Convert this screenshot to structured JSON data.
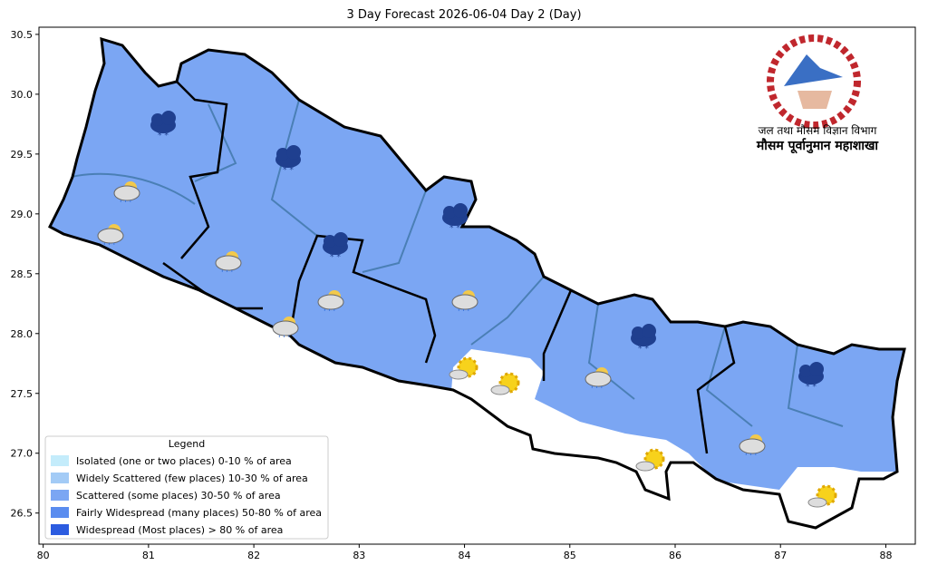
{
  "chart_data": {
    "type": "map",
    "title": "3 Day Forecast 2026-06-04 Day 2 (Day)",
    "xlim": [
      79.96,
      88.28
    ],
    "ylim": [
      26.24,
      30.56
    ],
    "xticks": [
      80,
      81,
      82,
      83,
      84,
      85,
      86,
      87,
      88
    ],
    "yticks": [
      26.5,
      {
        "value": 27,
        "label": "27.0"
      },
      27.5,
      {
        "value": 28,
        "label": "28.0"
      },
      28.5,
      {
        "value": 29,
        "label": "29.0"
      },
      29.5,
      {
        "value": 30,
        "label": "30.0"
      },
      30.5
    ],
    "legend": {
      "title": "Legend",
      "position": "lower left",
      "entries": [
        {
          "name": "Isolated (one or two places)  0-10 % of area",
          "color": "#c4ecfb"
        },
        {
          "name": "Widely Scattered (few places)  10-30 % of area",
          "color": "#a3cbf6"
        },
        {
          "name": "Scattered (some places)  30-50 % of area",
          "color": "#7ba6f3"
        },
        {
          "name": "Fairly Widespread (many places)  50-80 % of area",
          "color": "#5a8cef"
        },
        {
          "name": "Widespread (Most places) > 80 % of area",
          "color": "#2c5ce0"
        }
      ]
    },
    "logo_text": [
      "जल तथा मौसम विज्ञान विभाग",
      "मौसम पूर्वानुमान महाशाखा"
    ]
  }
}
